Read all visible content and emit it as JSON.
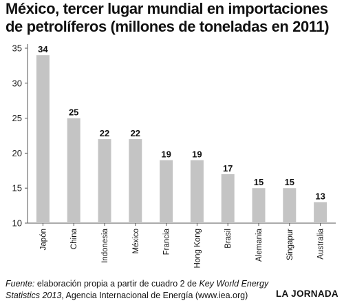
{
  "header": {
    "title_line1": "México, tercer lugar mundial en importaciones",
    "title_line2": "de petrolíferos (millones de toneladas en 2011)"
  },
  "footer": {
    "source_label": "Fuente:",
    "source_text1": " elaboración propia a partir de cuadro 2 de ",
    "source_italic1": "Key World Energy",
    "source_italic2": "Statistics 2013",
    "source_text2": ", Agencia Internacional de Energía (www.iea.org)",
    "credit": "LA JORNADA"
  },
  "colors": {
    "bar": "#c4c4c4",
    "axis": "#555555",
    "grid": "#d0d0d0"
  },
  "chart_data": {
    "type": "bar",
    "categories": [
      "Japón",
      "China",
      "Indonesia",
      "México",
      "Francia",
      "Hong Kong",
      "Brasil",
      "Alemania",
      "Singapur",
      "Australia"
    ],
    "values": [
      34,
      25,
      22,
      22,
      19,
      19,
      17,
      15,
      15,
      13
    ],
    "data_labels": [
      "34",
      "25",
      "22",
      "22",
      "19",
      "19",
      "17",
      "15",
      "15",
      "13"
    ],
    "ylim": [
      10,
      35
    ],
    "yticks": [
      10,
      15,
      20,
      25,
      30,
      35
    ],
    "ytick_labels": [
      "10",
      "15",
      "20",
      "25",
      "30",
      "35"
    ],
    "grid": false,
    "legend": "none"
  }
}
